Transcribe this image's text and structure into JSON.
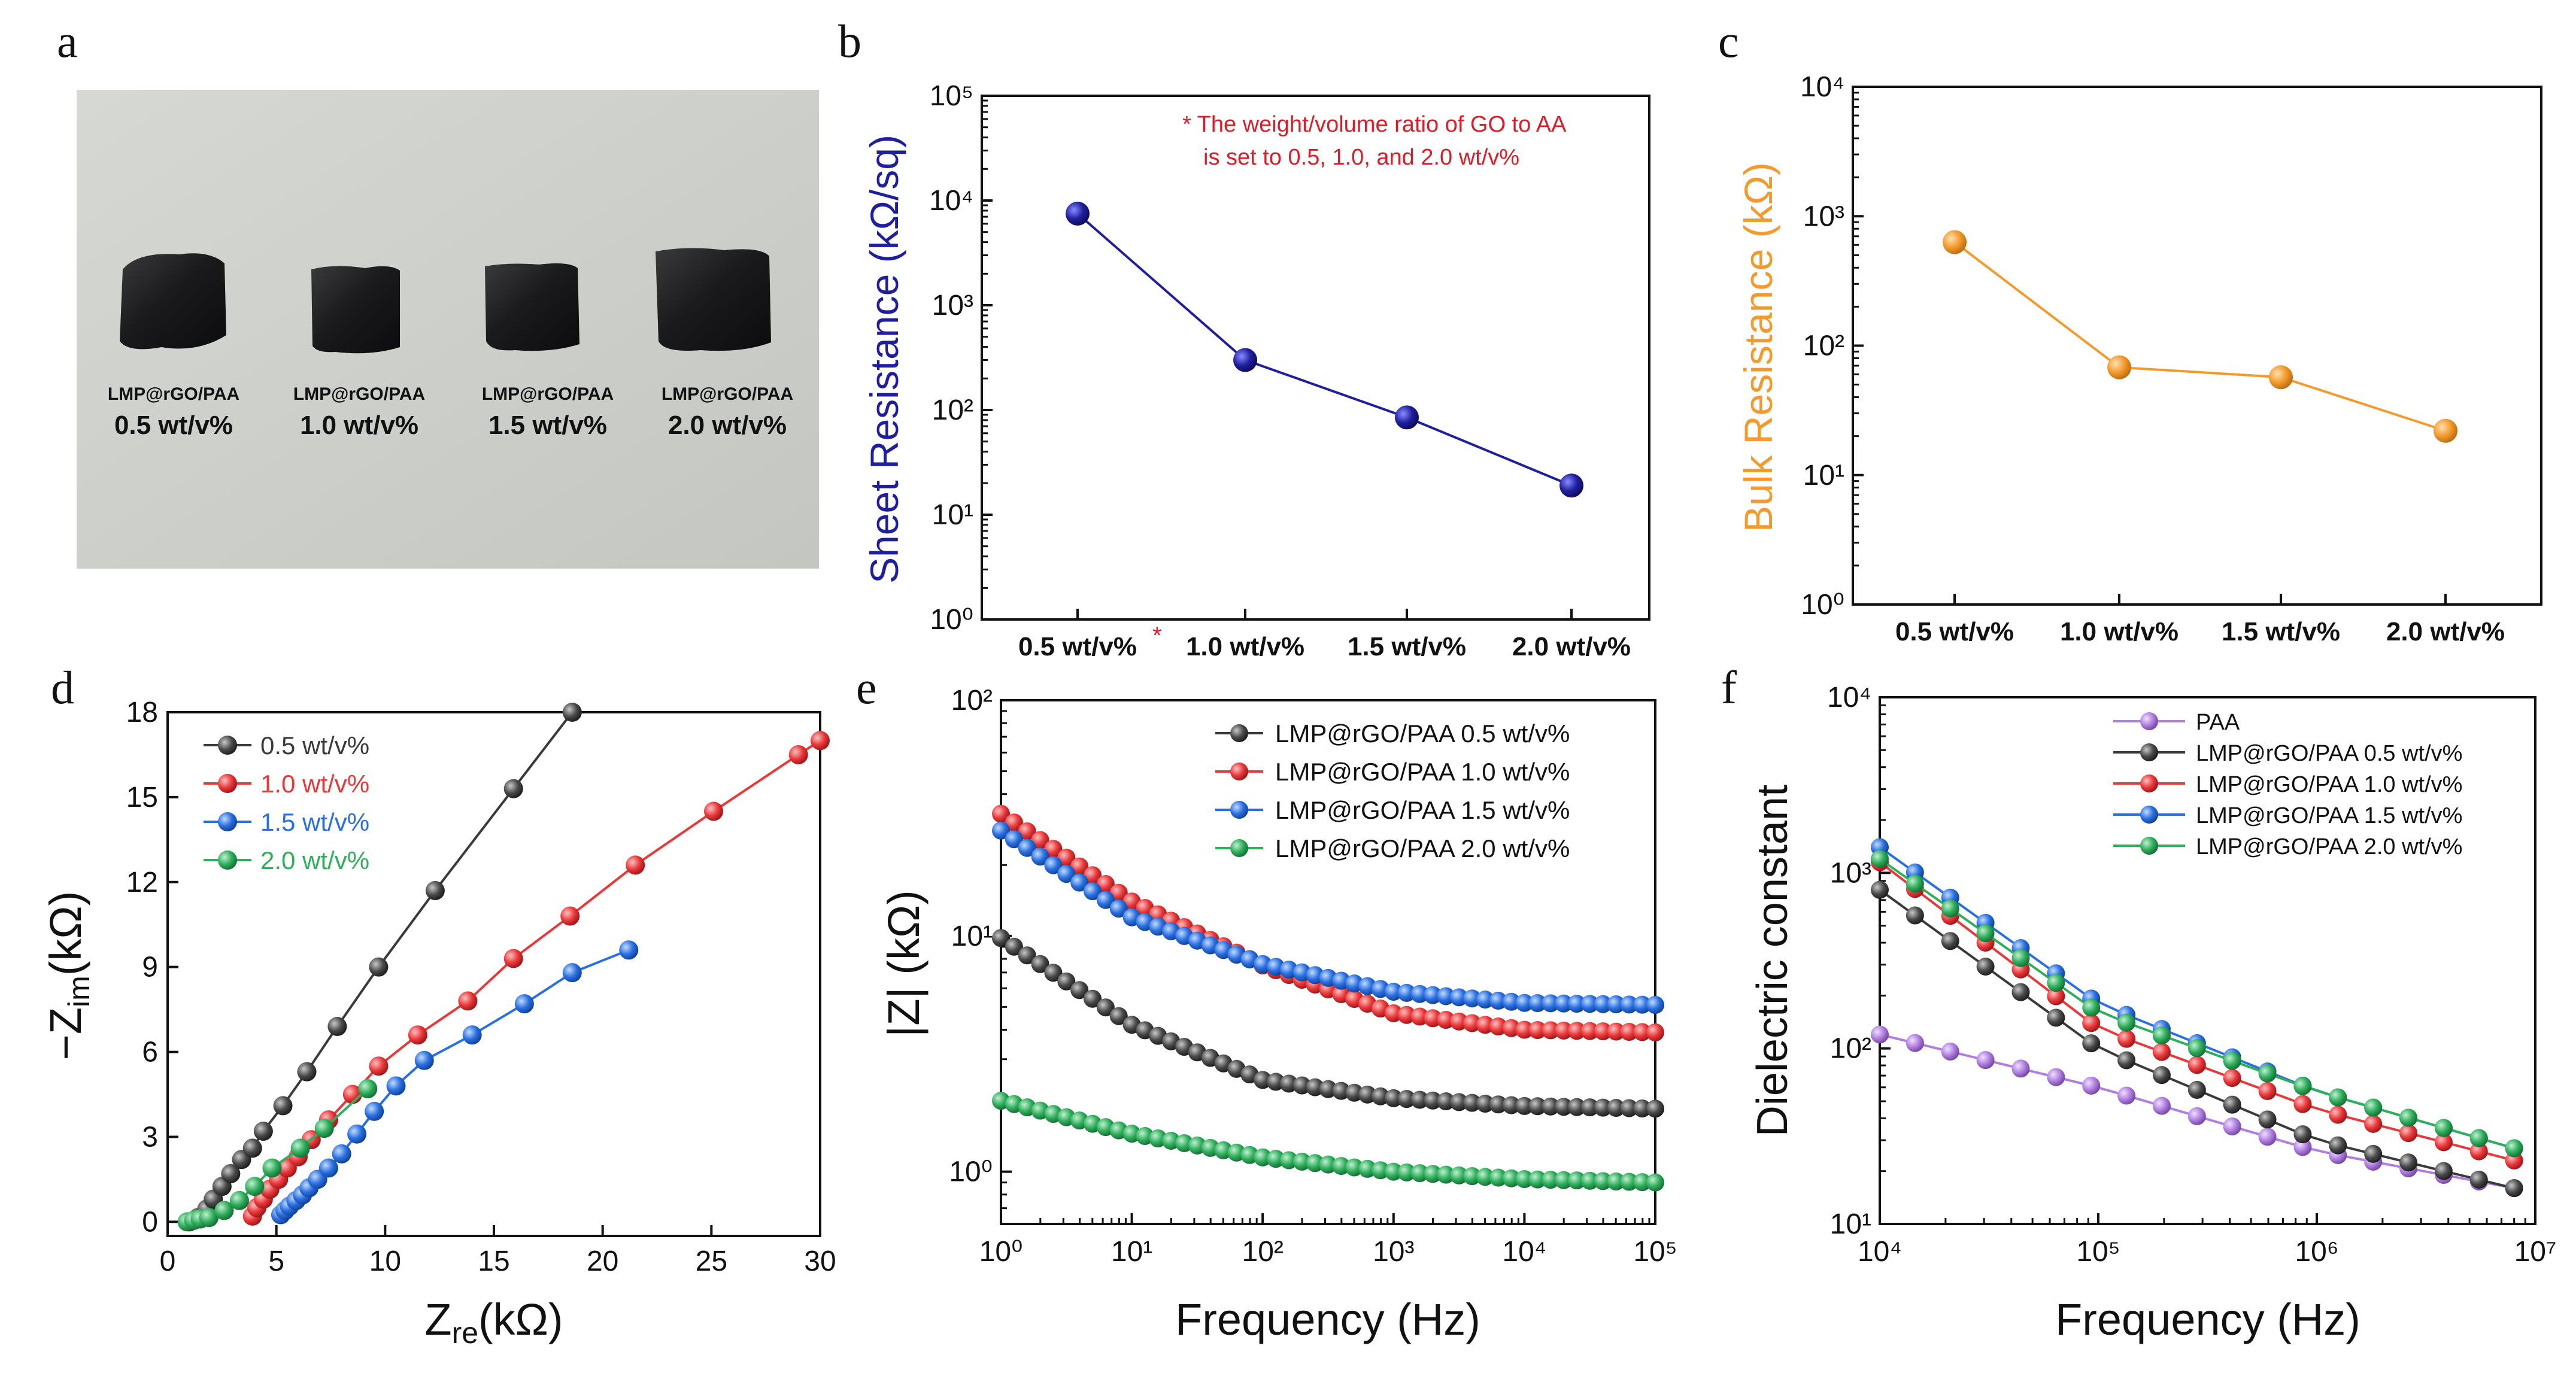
{
  "panels": {
    "a": {
      "label": "a",
      "samples": [
        {
          "name": "LMP@rGO/PAA",
          "conc": "0.5 wt/v%"
        },
        {
          "name": "LMP@rGO/PAA",
          "conc": "1.0 wt/v%"
        },
        {
          "name": "LMP@rGO/PAA",
          "conc": "1.5 wt/v%"
        },
        {
          "name": "LMP@rGO/PAA",
          "conc": "2.0 wt/v%"
        }
      ]
    }
  },
  "colors": {
    "navy": "#1f1f9e",
    "orange": "#f39a2c",
    "black": "#3a3a3a",
    "red": "#e8383a",
    "blue": "#2a6fe0",
    "green": "#2fae5c",
    "purple": "#b07ee0",
    "note_red": "#d81e2a"
  },
  "chart_data": [
    {
      "panel": "b",
      "type": "line",
      "scale": "log",
      "categories": [
        "0.5 wt/v%",
        "1.0 wt/v%",
        "1.5 wt/v%",
        "2.0 wt/v%"
      ],
      "values": [
        7500,
        300,
        85,
        19
      ],
      "ylabel": "Sheet Resistance (kΩ/sq)",
      "ylim": [
        1,
        100000
      ],
      "yticks": [
        "10⁰",
        "10¹",
        "10²",
        "10³",
        "10⁴",
        "10⁵"
      ],
      "note_line1": "* The weight/volume ratio of GO to AA",
      "note_line2": "is set to 0.5, 1.0, and 2.0 wt/v%",
      "asterisk": "*"
    },
    {
      "panel": "c",
      "type": "line",
      "scale": "log",
      "categories": [
        "0.5 wt/v%",
        "1.0 wt/v%",
        "1.5 wt/v%",
        "2.0 wt/v%"
      ],
      "values": [
        630,
        68,
        57,
        22
      ],
      "ylabel": "Bulk Resistance (kΩ)",
      "ylim": [
        1,
        10000
      ],
      "yticks": [
        "10⁰",
        "10¹",
        "10²",
        "10³",
        "10⁴"
      ]
    },
    {
      "panel": "d",
      "type": "scatter",
      "xlabel_main": "Z",
      "xlabel_sub": "re",
      "xlabel_unit": "(kΩ)",
      "ylabel_main": "−Z",
      "ylabel_sub": "im",
      "ylabel_unit": "(kΩ)",
      "xlim": [
        0,
        30
      ],
      "ylim": [
        -0.5,
        18
      ],
      "xticks": [
        "0",
        "5",
        "10",
        "15",
        "20",
        "25",
        "30"
      ],
      "yticks": [
        "0",
        "3",
        "6",
        "9",
        "12",
        "15",
        "18"
      ],
      "series": [
        {
          "name": "0.5 wt/v%",
          "points": [
            [
              1.0,
              0.0
            ],
            [
              1.4,
              0.15
            ],
            [
              1.8,
              0.45
            ],
            [
              2.1,
              0.8
            ],
            [
              2.5,
              1.25
            ],
            [
              2.9,
              1.7
            ],
            [
              3.4,
              2.2
            ],
            [
              3.9,
              2.6
            ],
            [
              4.4,
              3.2
            ],
            [
              5.3,
              4.1
            ],
            [
              6.4,
              5.3
            ],
            [
              7.8,
              6.9
            ],
            [
              9.7,
              9.0
            ],
            [
              12.3,
              11.7
            ],
            [
              15.9,
              15.3
            ],
            [
              18.6,
              18.0
            ]
          ]
        },
        {
          "name": "1.0 wt/v%",
          "points": [
            [
              3.9,
              0.2
            ],
            [
              4.1,
              0.5
            ],
            [
              4.4,
              0.8
            ],
            [
              4.7,
              1.15
            ],
            [
              5.1,
              1.5
            ],
            [
              5.5,
              1.9
            ],
            [
              6.0,
              2.3
            ],
            [
              6.6,
              2.9
            ],
            [
              7.4,
              3.6
            ],
            [
              8.5,
              4.5
            ],
            [
              9.7,
              5.5
            ],
            [
              11.5,
              6.6
            ],
            [
              13.8,
              7.8
            ],
            [
              15.9,
              9.3
            ],
            [
              18.5,
              10.8
            ],
            [
              21.5,
              12.6
            ],
            [
              25.1,
              14.5
            ],
            [
              29.0,
              16.5
            ],
            [
              30.0,
              17.0
            ]
          ]
        },
        {
          "name": "1.5 wt/v%",
          "points": [
            [
              5.2,
              0.25
            ],
            [
              5.4,
              0.4
            ],
            [
              5.6,
              0.55
            ],
            [
              5.9,
              0.75
            ],
            [
              6.2,
              0.95
            ],
            [
              6.5,
              1.2
            ],
            [
              6.9,
              1.5
            ],
            [
              7.4,
              1.9
            ],
            [
              8.0,
              2.4
            ],
            [
              8.7,
              3.1
            ],
            [
              9.5,
              3.9
            ],
            [
              10.5,
              4.8
            ],
            [
              11.8,
              5.7
            ],
            [
              14.0,
              6.6
            ],
            [
              16.4,
              7.7
            ],
            [
              18.6,
              8.8
            ],
            [
              21.2,
              9.6
            ]
          ]
        },
        {
          "name": "2.0 wt/v%",
          "points": [
            [
              0.9,
              0.0
            ],
            [
              1.2,
              0.05
            ],
            [
              1.5,
              0.1
            ],
            [
              1.9,
              0.15
            ],
            [
              2.6,
              0.4
            ],
            [
              3.3,
              0.75
            ],
            [
              4.0,
              1.25
            ],
            [
              4.8,
              1.9
            ],
            [
              6.1,
              2.6
            ],
            [
              7.2,
              3.3
            ],
            [
              9.2,
              4.7
            ]
          ]
        }
      ]
    },
    {
      "panel": "e",
      "type": "line",
      "scale": "log-log",
      "xlabel": "Frequency (Hz)",
      "ylabel": "|Z| (kΩ)",
      "xlim": [
        1,
        100000
      ],
      "ylim": [
        0.6,
        100
      ],
      "xticks": [
        "10⁰",
        "10¹",
        "10²",
        "10³",
        "10⁴",
        "10⁵"
      ],
      "yticks": [
        "10⁰",
        "10¹",
        "10²"
      ],
      "series": [
        {
          "name": "LMP@rGO/PAA 0.5 wt/v%",
          "x": [
            1,
            10,
            100,
            1000,
            10000,
            100000
          ],
          "values": [
            9.8,
            4.2,
            2.45,
            2.05,
            1.9,
            1.85
          ]
        },
        {
          "name": "LMP@rGO/PAA 1.0 wt/v%",
          "x": [
            1,
            10,
            100,
            1000,
            10000,
            100000
          ],
          "values": [
            33,
            14,
            7.5,
            4.7,
            4.0,
            3.9
          ]
        },
        {
          "name": "LMP@rGO/PAA 1.5 wt/v%",
          "x": [
            1,
            10,
            100,
            1000,
            10000,
            100000
          ],
          "values": [
            28,
            12,
            7.6,
            5.8,
            5.2,
            5.1
          ]
        },
        {
          "name": "LMP@rGO/PAA 2.0 wt/v%",
          "x": [
            1,
            10,
            100,
            1000,
            10000,
            100000
          ],
          "values": [
            2.0,
            1.45,
            1.15,
            1.0,
            0.93,
            0.9
          ]
        }
      ]
    },
    {
      "panel": "f",
      "type": "line",
      "scale": "log-log",
      "xlabel": "Frequency (Hz)",
      "ylabel": "Dielectric constant",
      "xlim": [
        10000,
        10000000
      ],
      "ylim": [
        10,
        10000
      ],
      "xticks": [
        "10⁴",
        "10⁵",
        "10⁶",
        "10⁷"
      ],
      "yticks": [
        "10¹",
        "10²",
        "10³",
        "10⁴"
      ],
      "series": [
        {
          "name": "PAA",
          "x": [
            10000,
            100000,
            1000000,
            8000000
          ],
          "values": [
            120,
            60,
            26,
            16
          ]
        },
        {
          "name": "LMP@rGO/PAA 0.5 wt/v%",
          "x": [
            10000,
            100000,
            1000000,
            8000000
          ],
          "values": [
            800,
            100,
            30,
            16
          ]
        },
        {
          "name": "LMP@rGO/PAA 1.0 wt/v%",
          "x": [
            10000,
            100000,
            1000000,
            8000000
          ],
          "values": [
            1150,
            130,
            45,
            23
          ]
        },
        {
          "name": "LMP@rGO/PAA 1.5 wt/v%",
          "x": [
            10000,
            100000,
            1000000,
            8000000
          ],
          "values": [
            1400,
            180,
            57,
            27
          ]
        },
        {
          "name": "LMP@rGO/PAA 2.0 wt/v%",
          "x": [
            10000,
            100000,
            1000000,
            8000000
          ],
          "values": [
            1200,
            160,
            57,
            27
          ]
        }
      ]
    }
  ]
}
